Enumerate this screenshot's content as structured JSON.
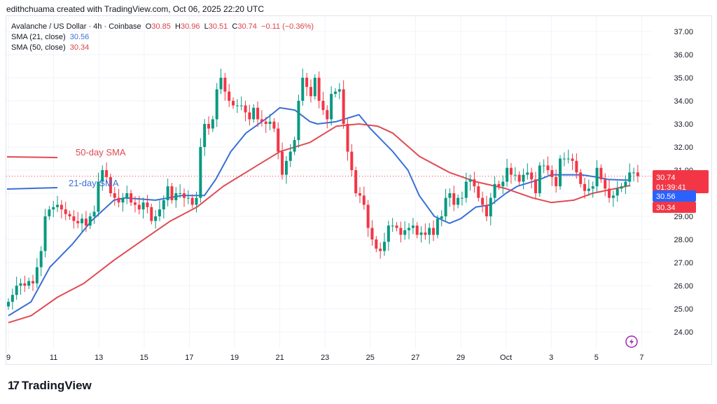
{
  "credit": "edithchuama created with TradingView.com, Oct 06, 2025 22:20 UTC",
  "legend": {
    "symbol": "Avalanche / US Dollar · 4h · Coinbase",
    "o_label": "O",
    "o": "30.85",
    "h_label": "H",
    "h": "30.96",
    "l_label": "L",
    "l": "30.51",
    "c_label": "C",
    "c": "30.74",
    "change": "−0.11 (−0.36%)",
    "sma21_label": "SMA (21, close)",
    "sma21": "30.56",
    "sma50_label": "SMA (50, close)",
    "sma50": "30.34"
  },
  "annotations": {
    "sma50": "50-day SMA",
    "sma21": "21-day SMA"
  },
  "badges": {
    "last": "30.74",
    "countdown": "01:39:41",
    "sma21": "30.56",
    "sma50": "30.34"
  },
  "logo": {
    "mark": "17",
    "text": "TradingView"
  },
  "icons": {
    "flash": "lightning-icon"
  },
  "colors": {
    "up": "#089981",
    "down": "#f23645",
    "sma21": "#3a6fd8",
    "sma50": "#e04b52"
  },
  "chart_data": {
    "type": "candlestick",
    "title": "Avalanche / US Dollar · 4h · Coinbase",
    "interval_hours": 4,
    "first_open": 25.1,
    "span_days": 27.83,
    "close": [
      25.3,
      25.6,
      26.0,
      26.1,
      26.0,
      26.2,
      26.1,
      26.8,
      27.5,
      29.0,
      29.3,
      29.4,
      29.5,
      29.3,
      29.1,
      29.0,
      28.8,
      28.7,
      28.9,
      28.6,
      29.0,
      29.2,
      30.5,
      31.0,
      30.7,
      30.0,
      29.8,
      29.6,
      29.8,
      30.0,
      29.6,
      29.5,
      29.3,
      29.6,
      29.4,
      28.8,
      29.0,
      29.3,
      29.7,
      30.3,
      29.7,
      30.0,
      30.0,
      29.8,
      29.8,
      29.5,
      29.8,
      32.0,
      33.0,
      32.8,
      33.2,
      34.5,
      35.0,
      34.4,
      34.0,
      33.8,
      33.8,
      33.8,
      33.5,
      33.2,
      33.7,
      33.2,
      33.1,
      33.0,
      33.1,
      32.8,
      31.8,
      30.8,
      31.4,
      31.8,
      32.3,
      34.0,
      35.0,
      34.6,
      34.2,
      35.0,
      34.0,
      33.6,
      33.2,
      34.3,
      34.4,
      34.5,
      33.0,
      31.8,
      31.0,
      30.0,
      29.9,
      29.5,
      28.5,
      28.0,
      27.6,
      27.5,
      27.9,
      28.6,
      28.6,
      28.5,
      28.2,
      28.4,
      28.5,
      28.6,
      28.2,
      28.3,
      28.2,
      28.5,
      28.2,
      28.9,
      29.0,
      29.8,
      30.0,
      29.5,
      29.8,
      29.8,
      30.5,
      30.6,
      30.3,
      29.8,
      29.5,
      29.0,
      29.8,
      30.4,
      30.3,
      30.5,
      31.1,
      30.8,
      30.8,
      30.5,
      30.8,
      30.9,
      30.6,
      30.0,
      31.2,
      31.2,
      31.0,
      30.7,
      30.3,
      31.5,
      31.5,
      31.5,
      31.4,
      30.9,
      30.4,
      30.1,
      30.2,
      30.3,
      31.1,
      30.6,
      30.2,
      29.8,
      29.9,
      30.2,
      30.3,
      30.5,
      30.9,
      30.9,
      30.74
    ],
    "series": [
      {
        "name": "SMA (21, close)",
        "points": [
          [
            0,
            24.7
          ],
          [
            6,
            25.3
          ],
          [
            11,
            26.8
          ],
          [
            17,
            27.8
          ],
          [
            22,
            28.8
          ],
          [
            28,
            29.7
          ],
          [
            31,
            29.8
          ],
          [
            39,
            29.7
          ],
          [
            46,
            29.9
          ],
          [
            52,
            29.9
          ],
          [
            55,
            30.6
          ],
          [
            59,
            31.8
          ],
          [
            63,
            32.6
          ],
          [
            69,
            33.3
          ],
          [
            72,
            33.7
          ],
          [
            76,
            33.6
          ],
          [
            80,
            33.1
          ],
          [
            82,
            33.0
          ],
          [
            87,
            33.1
          ],
          [
            93,
            33.4
          ],
          [
            96,
            32.8
          ],
          [
            102,
            31.8
          ],
          [
            106,
            31.0
          ],
          [
            109,
            29.9
          ],
          [
            113,
            29.0
          ],
          [
            117,
            28.7
          ],
          [
            120,
            28.9
          ],
          [
            124,
            29.4
          ],
          [
            128,
            29.5
          ],
          [
            132,
            30.0
          ],
          [
            135,
            30.3
          ],
          [
            141,
            30.6
          ],
          [
            144,
            30.8
          ],
          [
            148,
            30.8
          ],
          [
            152,
            30.8
          ],
          [
            156,
            30.7
          ],
          [
            159,
            30.6
          ],
          [
            165,
            30.56
          ]
        ]
      },
      {
        "name": "SMA (50, close)",
        "points": [
          [
            0,
            24.4
          ],
          [
            6,
            24.7
          ],
          [
            13,
            25.5
          ],
          [
            20,
            26.1
          ],
          [
            28,
            27.1
          ],
          [
            35,
            27.9
          ],
          [
            43,
            28.8
          ],
          [
            50,
            29.4
          ],
          [
            57,
            30.3
          ],
          [
            65,
            31.1
          ],
          [
            72,
            31.8
          ],
          [
            80,
            32.2
          ],
          [
            87,
            32.9
          ],
          [
            93,
            33.0
          ],
          [
            98,
            32.9
          ],
          [
            102,
            32.6
          ],
          [
            109,
            31.6
          ],
          [
            117,
            30.9
          ],
          [
            124,
            30.5
          ],
          [
            132,
            30.2
          ],
          [
            139,
            29.8
          ],
          [
            144,
            29.6
          ],
          [
            150,
            29.7
          ],
          [
            155,
            30.0
          ],
          [
            161,
            30.2
          ],
          [
            165,
            30.34
          ]
        ]
      }
    ],
    "y_ticks": [
      "37.00",
      "36.00",
      "35.00",
      "34.00",
      "33.00",
      "32.00",
      "31.00",
      "30.00",
      "29.00",
      "28.00",
      "27.00",
      "26.00",
      "25.00",
      "24.00"
    ],
    "ylim": [
      24,
      37
    ],
    "x_ticks": [
      "9",
      "11",
      "13",
      "15",
      "17",
      "19",
      "21",
      "23",
      "25",
      "27",
      "29",
      "Oct",
      "3",
      "5",
      "7"
    ],
    "last_price": 30.74,
    "grid": true
  }
}
